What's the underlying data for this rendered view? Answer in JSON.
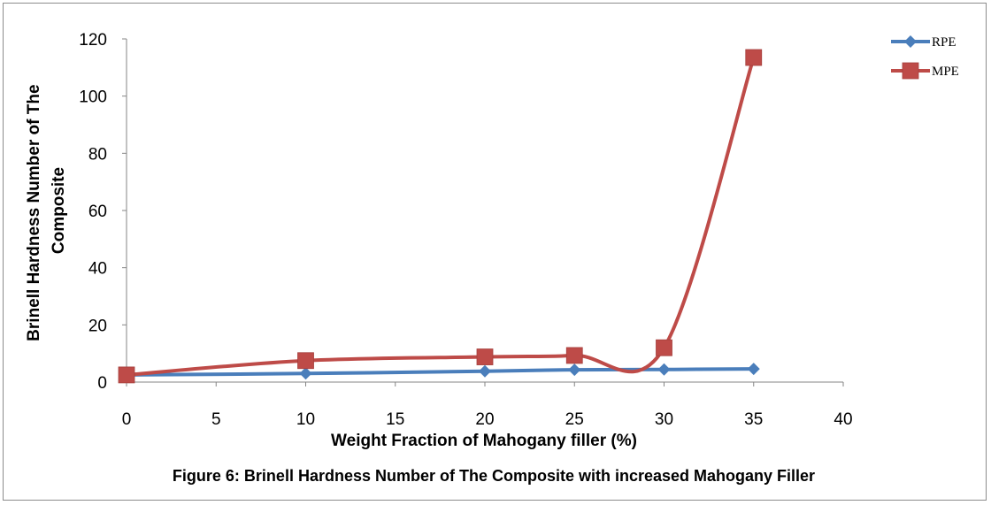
{
  "chart_data": {
    "type": "line",
    "title": "",
    "caption": "Figure 6: Brinell Hardness Number of The Composite with increased Mahogany Filler",
    "xlabel": "Weight Fraction of Mahogany filler (%)",
    "ylabel_lines": [
      "Brinell Hardness Number of The",
      "Composite"
    ],
    "xlim": [
      0,
      40
    ],
    "ylim": [
      0,
      120
    ],
    "x_ticks": [
      0,
      5,
      10,
      15,
      20,
      25,
      30,
      35,
      40
    ],
    "y_ticks": [
      0,
      20,
      40,
      60,
      80,
      100,
      120
    ],
    "x": [
      0,
      10,
      20,
      25,
      30,
      35
    ],
    "series": [
      {
        "name": "RPE",
        "color": "#4a7ebb",
        "marker": "diamond",
        "values": [
          2.5,
          3.0,
          3.8,
          4.3,
          4.4,
          4.6
        ]
      },
      {
        "name": "MPE",
        "color": "#be4b48",
        "marker": "square",
        "values": [
          2.5,
          7.5,
          8.8,
          9.3,
          12.0,
          113.5
        ]
      }
    ],
    "grid": false,
    "legend_position": "top-right"
  }
}
